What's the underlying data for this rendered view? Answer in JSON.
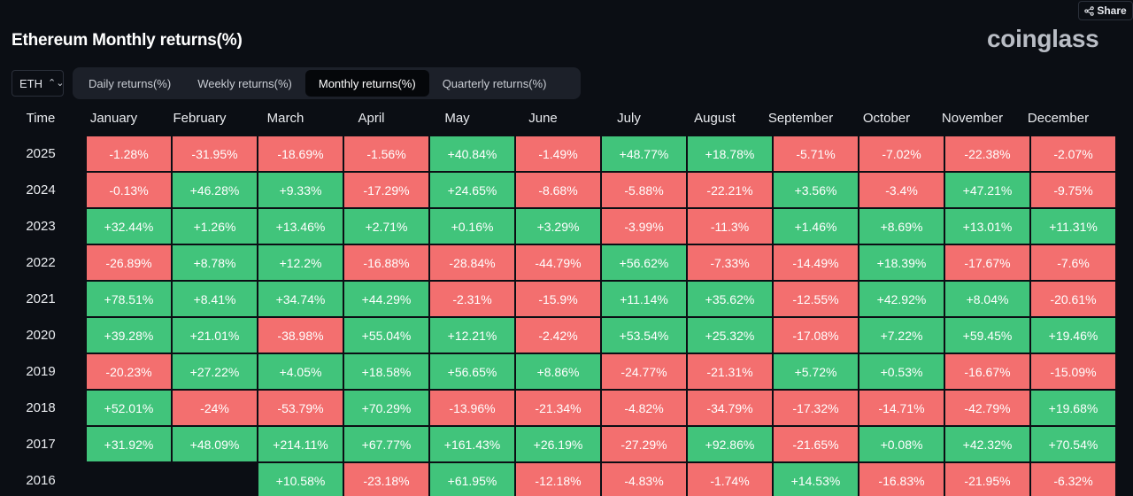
{
  "header": {
    "title": "Ethereum Monthly returns(%)",
    "logo": "coinglass",
    "share_label": "Share"
  },
  "asset_select": {
    "value": "ETH"
  },
  "tabs": [
    {
      "label": "Daily returns(%)",
      "active": false
    },
    {
      "label": "Weekly returns(%)",
      "active": false
    },
    {
      "label": "Monthly returns(%)",
      "active": true
    },
    {
      "label": "Quarterly returns(%)",
      "active": false
    }
  ],
  "colors": {
    "positive": "#41c47b",
    "negative": "#f36f6f",
    "background": "#0b0e14"
  },
  "chart_data": {
    "type": "heatmap",
    "corner_label": "Time",
    "columns": [
      "January",
      "February",
      "March",
      "April",
      "May",
      "June",
      "July",
      "August",
      "September",
      "October",
      "November",
      "December"
    ],
    "rows": [
      {
        "year": "2025",
        "values": [
          "-1.28%",
          "-31.95%",
          "-18.69%",
          "-1.56%",
          "+40.84%",
          "-1.49%",
          "+48.77%",
          "+18.78%",
          "-5.71%",
          "-7.02%",
          "-22.38%",
          "-2.07%"
        ]
      },
      {
        "year": "2024",
        "values": [
          "-0.13%",
          "+46.28%",
          "+9.33%",
          "-17.29%",
          "+24.65%",
          "-8.68%",
          "-5.88%",
          "-22.21%",
          "+3.56%",
          "-3.4%",
          "+47.21%",
          "-9.75%"
        ]
      },
      {
        "year": "2023",
        "values": [
          "+32.44%",
          "+1.26%",
          "+13.46%",
          "+2.71%",
          "+0.16%",
          "+3.29%",
          "-3.99%",
          "-11.3%",
          "+1.46%",
          "+8.69%",
          "+13.01%",
          "+11.31%"
        ]
      },
      {
        "year": "2022",
        "values": [
          "-26.89%",
          "+8.78%",
          "+12.2%",
          "-16.88%",
          "-28.84%",
          "-44.79%",
          "+56.62%",
          "-7.33%",
          "-14.49%",
          "+18.39%",
          "-17.67%",
          "-7.6%"
        ]
      },
      {
        "year": "2021",
        "values": [
          "+78.51%",
          "+8.41%",
          "+34.74%",
          "+44.29%",
          "-2.31%",
          "-15.9%",
          "+11.14%",
          "+35.62%",
          "-12.55%",
          "+42.92%",
          "+8.04%",
          "-20.61%"
        ]
      },
      {
        "year": "2020",
        "values": [
          "+39.28%",
          "+21.01%",
          "-38.98%",
          "+55.04%",
          "+12.21%",
          "-2.42%",
          "+53.54%",
          "+25.32%",
          "-17.08%",
          "+7.22%",
          "+59.45%",
          "+19.46%"
        ]
      },
      {
        "year": "2019",
        "values": [
          "-20.23%",
          "+27.22%",
          "+4.05%",
          "+18.58%",
          "+56.65%",
          "+8.86%",
          "-24.77%",
          "-21.31%",
          "+5.72%",
          "+0.53%",
          "-16.67%",
          "-15.09%"
        ]
      },
      {
        "year": "2018",
        "values": [
          "+52.01%",
          "-24%",
          "-53.79%",
          "+70.29%",
          "-13.96%",
          "-21.34%",
          "-4.82%",
          "-34.79%",
          "-17.32%",
          "-14.71%",
          "-42.79%",
          "+19.68%"
        ]
      },
      {
        "year": "2017",
        "values": [
          "+31.92%",
          "+48.09%",
          "+214.11%",
          "+67.77%",
          "+161.43%",
          "+26.19%",
          "-27.29%",
          "+92.86%",
          "-21.65%",
          "+0.08%",
          "+42.32%",
          "+70.54%"
        ]
      },
      {
        "year": "2016",
        "values": [
          null,
          null,
          "+10.58%",
          "-23.18%",
          "+61.95%",
          "-12.18%",
          "-4.83%",
          "-1.74%",
          "+14.53%",
          "-16.83%",
          "-21.95%",
          "-6.32%"
        ]
      }
    ]
  }
}
